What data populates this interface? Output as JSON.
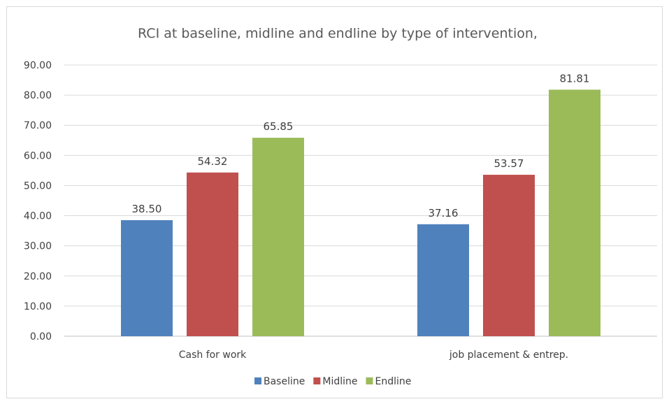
{
  "chart_data": {
    "type": "bar",
    "title": "RCI at baseline, midline and endline by type of intervention,",
    "categories": [
      "Cash for work",
      "job placement & entrep."
    ],
    "series": [
      {
        "name": "Baseline",
        "color": "#4f81bd",
        "values": [
          38.5,
          37.16
        ]
      },
      {
        "name": "Midline",
        "color": "#c0504d",
        "values": [
          54.32,
          53.57
        ]
      },
      {
        "name": "Endline",
        "color": "#9bbb59",
        "values": [
          65.85,
          81.81
        ]
      }
    ],
    "ylim": [
      0,
      90
    ],
    "yticks": [
      "0.00",
      "10.00",
      "20.00",
      "30.00",
      "40.00",
      "50.00",
      "60.00",
      "70.00",
      "80.00",
      "90.00"
    ],
    "data_labels": [
      [
        "38.50",
        "37.16"
      ],
      [
        "54.32",
        "53.57"
      ],
      [
        "65.85",
        "81.81"
      ]
    ],
    "grid": true,
    "legend": "bottom"
  }
}
